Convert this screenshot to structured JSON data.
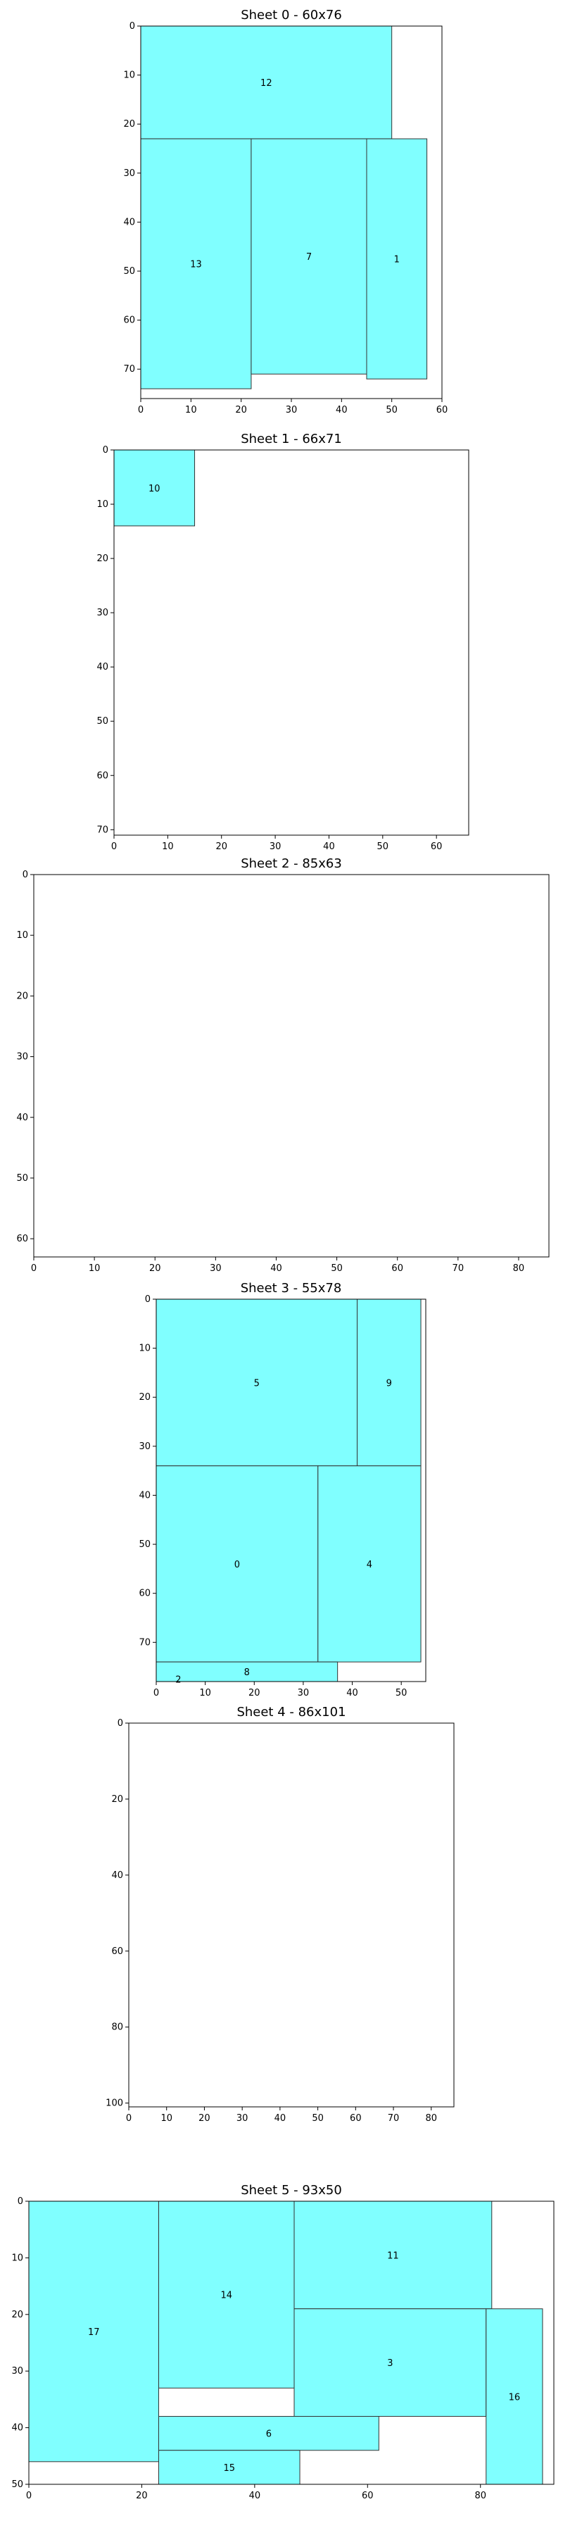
{
  "chart_data": [
    {
      "type": "packing",
      "title": "Sheet 0 - 60x76",
      "xlim": [
        0,
        60
      ],
      "ylim": [
        0,
        76
      ],
      "y_inverted": true,
      "xticks": [
        0,
        10,
        20,
        30,
        40,
        50,
        60
      ],
      "yticks": [
        0,
        10,
        20,
        30,
        40,
        50,
        60,
        70
      ],
      "fill_color": "#80ffff",
      "pieces": [
        {
          "label": "12",
          "x": 0,
          "y": 0,
          "w": 50,
          "h": 23
        },
        {
          "label": "13",
          "x": 0,
          "y": 23,
          "w": 22,
          "h": 51
        },
        {
          "label": "7",
          "x": 22,
          "y": 23,
          "w": 23,
          "h": 48
        },
        {
          "label": "1",
          "x": 45,
          "y": 23,
          "w": 12,
          "h": 49
        }
      ]
    },
    {
      "type": "packing",
      "title": "Sheet 1 - 66x71",
      "xlim": [
        0,
        66
      ],
      "ylim": [
        0,
        71
      ],
      "y_inverted": true,
      "xticks": [
        0,
        10,
        20,
        30,
        40,
        50,
        60
      ],
      "yticks": [
        0,
        10,
        20,
        30,
        40,
        50,
        60,
        70
      ],
      "fill_color": "#80ffff",
      "pieces": [
        {
          "label": "10",
          "x": 0,
          "y": 0,
          "w": 15,
          "h": 14
        }
      ]
    },
    {
      "type": "packing",
      "title": "Sheet 2 - 85x63",
      "xlim": [
        0,
        85
      ],
      "ylim": [
        0,
        63
      ],
      "y_inverted": true,
      "xticks": [
        0,
        10,
        20,
        30,
        40,
        50,
        60,
        70,
        80
      ],
      "yticks": [
        0,
        10,
        20,
        30,
        40,
        50,
        60
      ],
      "fill_color": "#80ffff",
      "pieces": []
    },
    {
      "type": "packing",
      "title": "Sheet 3 - 55x78",
      "xlim": [
        0,
        55
      ],
      "ylim": [
        0,
        78
      ],
      "y_inverted": true,
      "xticks": [
        0,
        10,
        20,
        30,
        40,
        50
      ],
      "yticks": [
        0,
        10,
        20,
        30,
        40,
        50,
        60,
        70
      ],
      "fill_color": "#80ffff",
      "pieces": [
        {
          "label": "5",
          "x": 0,
          "y": 0,
          "w": 41,
          "h": 34
        },
        {
          "label": "9",
          "x": 41,
          "y": 0,
          "w": 13,
          "h": 34
        },
        {
          "label": "0",
          "x": 0,
          "y": 34,
          "w": 33,
          "h": 40
        },
        {
          "label": "4",
          "x": 33,
          "y": 34,
          "w": 21,
          "h": 40
        },
        {
          "label": "8",
          "x": 0,
          "y": 74,
          "w": 37,
          "h": 4
        },
        {
          "label": "2",
          "x": 0,
          "y": 78,
          "w": 9,
          "h": 1
        }
      ]
    },
    {
      "type": "packing",
      "title": "Sheet 4 - 86x101",
      "xlim": [
        0,
        86
      ],
      "ylim": [
        0,
        101
      ],
      "y_inverted": true,
      "xticks": [
        0,
        10,
        20,
        30,
        40,
        50,
        60,
        70,
        80
      ],
      "yticks": [
        0,
        20,
        40,
        60,
        80,
        100
      ],
      "fill_color": "#80ffff",
      "pieces": []
    },
    {
      "type": "packing",
      "title": "Sheet 5 - 93x50",
      "xlim": [
        0,
        93
      ],
      "ylim": [
        0,
        50
      ],
      "y_inverted": true,
      "xticks": [
        0,
        20,
        40,
        60,
        80
      ],
      "yticks": [
        0,
        10,
        20,
        30,
        40,
        50
      ],
      "fill_color": "#80ffff",
      "pieces": [
        {
          "label": "17",
          "x": 0,
          "y": 0,
          "w": 23,
          "h": 46
        },
        {
          "label": "14",
          "x": 23,
          "y": 0,
          "w": 24,
          "h": 33
        },
        {
          "label": "11",
          "x": 47,
          "y": 0,
          "w": 35,
          "h": 19
        },
        {
          "label": "3",
          "x": 47,
          "y": 19,
          "w": 34,
          "h": 19
        },
        {
          "label": "16",
          "x": 81,
          "y": 19,
          "w": 10,
          "h": 31
        },
        {
          "label": "6",
          "x": 23,
          "y": 38,
          "w": 39,
          "h": 6
        },
        {
          "label": "15",
          "x": 23,
          "y": 44,
          "w": 25,
          "h": 6
        }
      ]
    }
  ]
}
